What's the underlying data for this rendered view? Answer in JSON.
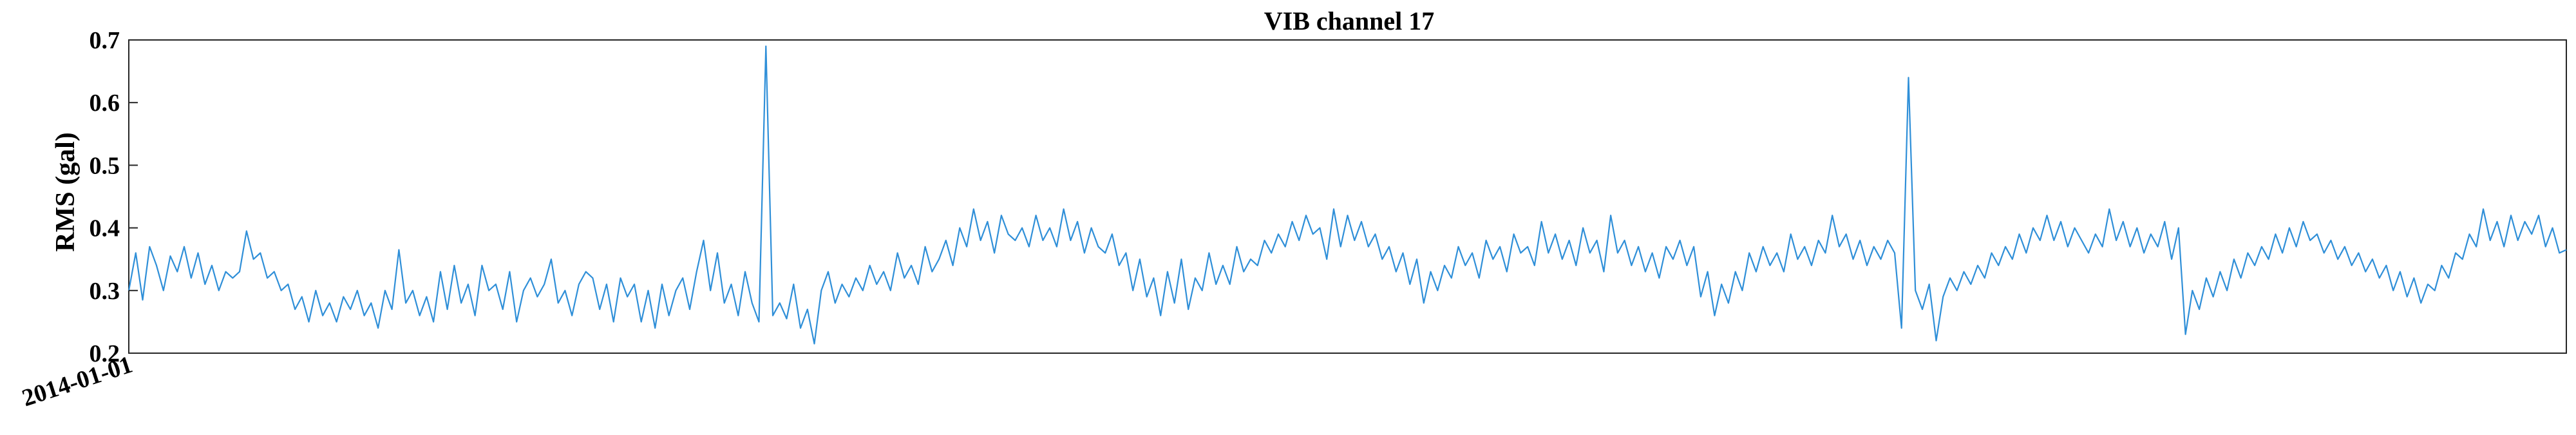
{
  "chart_data": {
    "type": "line",
    "title": "VIB channel 17",
    "xlabel": "",
    "ylabel": "RMS (gal)",
    "ylim": [
      0.2,
      0.7
    ],
    "yticks": [
      "0.2",
      "0.3",
      "0.4",
      "0.5",
      "0.6",
      "0.7"
    ],
    "xticks": [
      "2014-01-01"
    ],
    "grid": false,
    "legend": "none",
    "series_color": "#2f8fd8",
    "series": [
      {
        "values": [
          0.3,
          0.36,
          0.285,
          0.37,
          0.34,
          0.3,
          0.355,
          0.33,
          0.37,
          0.32,
          0.36,
          0.31,
          0.34,
          0.3,
          0.33,
          0.32,
          0.33,
          0.395,
          0.35,
          0.36,
          0.32,
          0.33,
          0.3,
          0.31,
          0.27,
          0.29,
          0.25,
          0.3,
          0.26,
          0.28,
          0.25,
          0.29,
          0.27,
          0.3,
          0.26,
          0.28,
          0.24,
          0.3,
          0.27,
          0.365,
          0.28,
          0.3,
          0.26,
          0.29,
          0.25,
          0.33,
          0.27,
          0.34,
          0.28,
          0.31,
          0.26,
          0.34,
          0.3,
          0.31,
          0.27,
          0.33,
          0.25,
          0.3,
          0.32,
          0.29,
          0.31,
          0.35,
          0.28,
          0.3,
          0.26,
          0.31,
          0.33,
          0.32,
          0.27,
          0.31,
          0.25,
          0.32,
          0.29,
          0.31,
          0.25,
          0.3,
          0.24,
          0.31,
          0.26,
          0.3,
          0.32,
          0.27,
          0.33,
          0.38,
          0.3,
          0.36,
          0.28,
          0.31,
          0.26,
          0.33,
          0.28,
          0.25,
          0.69,
          0.26,
          0.28,
          0.255,
          0.31,
          0.24,
          0.27,
          0.215,
          0.3,
          0.33,
          0.28,
          0.31,
          0.29,
          0.32,
          0.3,
          0.34,
          0.31,
          0.33,
          0.3,
          0.36,
          0.32,
          0.34,
          0.31,
          0.37,
          0.33,
          0.35,
          0.38,
          0.34,
          0.4,
          0.37,
          0.43,
          0.38,
          0.41,
          0.36,
          0.42,
          0.39,
          0.38,
          0.4,
          0.37,
          0.42,
          0.38,
          0.4,
          0.37,
          0.43,
          0.38,
          0.41,
          0.36,
          0.4,
          0.37,
          0.36,
          0.39,
          0.34,
          0.36,
          0.3,
          0.35,
          0.29,
          0.32,
          0.26,
          0.33,
          0.28,
          0.35,
          0.27,
          0.32,
          0.3,
          0.36,
          0.31,
          0.34,
          0.31,
          0.37,
          0.33,
          0.35,
          0.34,
          0.38,
          0.36,
          0.39,
          0.37,
          0.41,
          0.38,
          0.42,
          0.39,
          0.4,
          0.35,
          0.43,
          0.37,
          0.42,
          0.38,
          0.41,
          0.37,
          0.39,
          0.35,
          0.37,
          0.33,
          0.36,
          0.31,
          0.35,
          0.28,
          0.33,
          0.3,
          0.34,
          0.32,
          0.37,
          0.34,
          0.36,
          0.32,
          0.38,
          0.35,
          0.37,
          0.33,
          0.39,
          0.36,
          0.37,
          0.34,
          0.41,
          0.36,
          0.39,
          0.35,
          0.38,
          0.34,
          0.4,
          0.36,
          0.38,
          0.33,
          0.42,
          0.36,
          0.38,
          0.34,
          0.37,
          0.33,
          0.36,
          0.32,
          0.37,
          0.35,
          0.38,
          0.34,
          0.37,
          0.29,
          0.33,
          0.26,
          0.31,
          0.28,
          0.33,
          0.3,
          0.36,
          0.33,
          0.37,
          0.34,
          0.36,
          0.33,
          0.39,
          0.35,
          0.37,
          0.34,
          0.38,
          0.36,
          0.42,
          0.37,
          0.39,
          0.35,
          0.38,
          0.34,
          0.37,
          0.35,
          0.38,
          0.36,
          0.24,
          0.64,
          0.3,
          0.27,
          0.31,
          0.22,
          0.29,
          0.32,
          0.3,
          0.33,
          0.31,
          0.34,
          0.32,
          0.36,
          0.34,
          0.37,
          0.35,
          0.39,
          0.36,
          0.4,
          0.38,
          0.42,
          0.38,
          0.41,
          0.37,
          0.4,
          0.38,
          0.36,
          0.39,
          0.37,
          0.43,
          0.38,
          0.41,
          0.37,
          0.4,
          0.36,
          0.39,
          0.37,
          0.41,
          0.35,
          0.4,
          0.23,
          0.3,
          0.27,
          0.32,
          0.29,
          0.33,
          0.3,
          0.35,
          0.32,
          0.36,
          0.34,
          0.37,
          0.35,
          0.39,
          0.36,
          0.4,
          0.37,
          0.41,
          0.38,
          0.39,
          0.36,
          0.38,
          0.35,
          0.37,
          0.34,
          0.36,
          0.33,
          0.35,
          0.32,
          0.34,
          0.3,
          0.33,
          0.29,
          0.32,
          0.28,
          0.31,
          0.3,
          0.34,
          0.32,
          0.36,
          0.35,
          0.39,
          0.37,
          0.43,
          0.38,
          0.41,
          0.37,
          0.42,
          0.38,
          0.41,
          0.39,
          0.42,
          0.37,
          0.4,
          0.36,
          0.365
        ]
      }
    ]
  }
}
